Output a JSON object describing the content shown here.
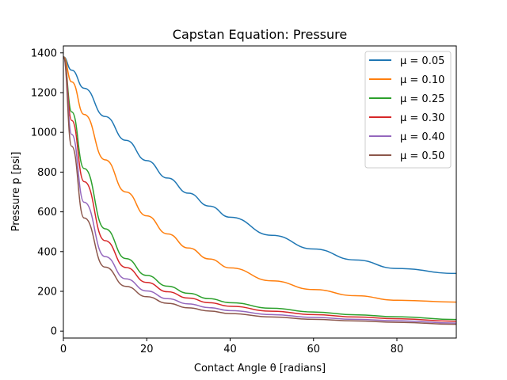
{
  "chart_data": {
    "type": "line",
    "title": "Capstan Equation: Pressure",
    "xlabel": "Contact Angle θ [radians]",
    "ylabel": "Pressure p [psi]",
    "xlim": [
      0,
      94.25
    ],
    "ylim": [
      -35,
      1435
    ],
    "xticks": [
      0,
      20,
      40,
      60,
      80
    ],
    "yticks": [
      0,
      200,
      400,
      600,
      800,
      1000,
      1200,
      1400
    ],
    "grid": false,
    "legend_position": "top-right",
    "series": [
      {
        "name": "μ = 0.05",
        "color": "#1f77b4",
        "x": [
          0,
          2,
          5,
          10,
          15,
          20,
          25,
          30,
          35,
          40,
          50,
          60,
          70,
          80,
          94.25
        ],
        "y": [
          1380,
          1313,
          1222,
          1080,
          960,
          858,
          770,
          694,
          629,
          573,
          482,
          413,
          358,
          315,
          290
        ]
      },
      {
        "name": "μ = 0.10",
        "color": "#ff7f0e",
        "x": [
          0,
          2,
          5,
          10,
          15,
          20,
          25,
          30,
          35,
          40,
          50,
          60,
          70,
          80,
          94.25
        ],
        "y": [
          1380,
          1254,
          1090,
          862,
          700,
          580,
          489,
          418,
          363,
          318,
          253,
          209,
          178,
          155,
          146
        ]
      },
      {
        "name": "μ = 0.25",
        "color": "#2ca02c",
        "x": [
          0,
          2,
          5,
          10,
          15,
          20,
          25,
          30,
          35,
          40,
          50,
          60,
          70,
          80,
          94.25
        ],
        "y": [
          1380,
          1103,
          818,
          515,
          365,
          280,
          226,
          190,
          163,
          143,
          115,
          96,
          82,
          72,
          58
        ]
      },
      {
        "name": "μ = 0.30",
        "color": "#d62728",
        "x": [
          0,
          2,
          5,
          10,
          15,
          20,
          25,
          30,
          35,
          40,
          50,
          60,
          70,
          80,
          94.25
        ],
        "y": [
          1380,
          1060,
          752,
          455,
          320,
          245,
          198,
          166,
          143,
          125,
          100,
          83,
          71,
          62,
          49
        ]
      },
      {
        "name": "μ = 0.40",
        "color": "#9467bd",
        "x": [
          0,
          2,
          5,
          10,
          15,
          20,
          25,
          30,
          35,
          40,
          50,
          60,
          70,
          80,
          94.25
        ],
        "y": [
          1380,
          990,
          648,
          375,
          263,
          202,
          163,
          137,
          118,
          103,
          83,
          69,
          59,
          52,
          40
        ]
      },
      {
        "name": "μ = 0.50",
        "color": "#8c564b",
        "x": [
          0,
          2,
          5,
          10,
          15,
          20,
          25,
          30,
          35,
          40,
          50,
          60,
          70,
          80,
          94.25
        ],
        "y": [
          1380,
          930,
          569,
          322,
          225,
          173,
          140,
          117,
          101,
          88,
          71,
          59,
          51,
          44,
          34
        ]
      }
    ]
  }
}
